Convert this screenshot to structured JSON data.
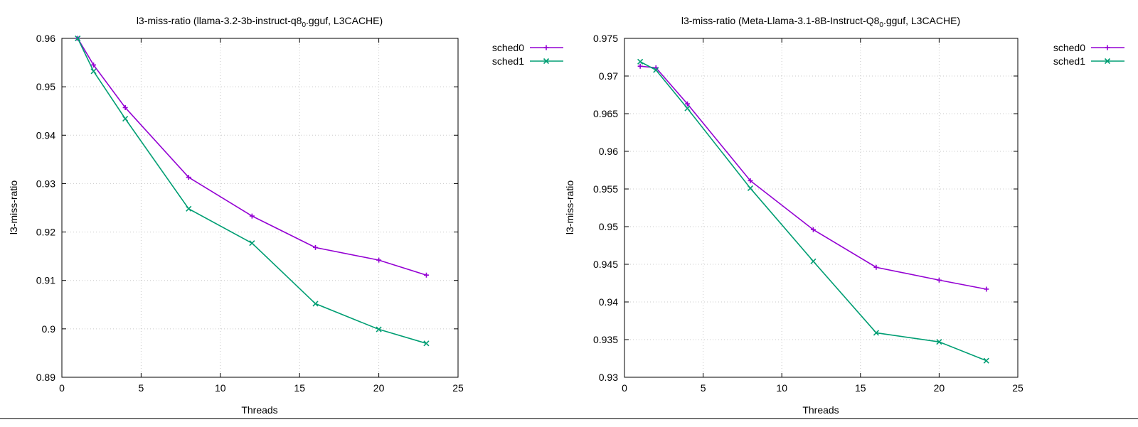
{
  "chart_data": [
    {
      "type": "line",
      "title": {
        "prefix": "l3-miss-ratio (llama-3.2-3b-instruct-q8",
        "sub": "0",
        "suffix": ".gguf, L3CACHE)"
      },
      "xlabel": "Threads",
      "ylabel": "l3-miss-ratio",
      "xlim": [
        0,
        25
      ],
      "ylim": [
        0.89,
        0.96
      ],
      "xticks": [
        0,
        5,
        10,
        15,
        20,
        25
      ],
      "xtick_labels": [
        "0",
        "5",
        "10",
        "15",
        "20",
        "25"
      ],
      "yticks": [
        0.89,
        0.9,
        0.91,
        0.92,
        0.93,
        0.94,
        0.95,
        0.96
      ],
      "ytick_labels": [
        "0.89",
        "0.9",
        "0.91",
        "0.92",
        "0.93",
        "0.94",
        "0.95",
        "0.96"
      ],
      "grid": true,
      "legend": "top-right outside",
      "x": [
        1,
        2,
        4,
        8,
        12,
        16,
        20,
        23
      ],
      "series": [
        {
          "name": "sched0",
          "color": "#9400d3",
          "marker": "plus",
          "values": [
            0.96,
            0.9545,
            0.9457,
            0.9313,
            0.9233,
            0.9168,
            0.9142,
            0.9111
          ]
        },
        {
          "name": "sched1",
          "color": "#009e73",
          "marker": "cross",
          "values": [
            0.96,
            0.9532,
            0.9434,
            0.9248,
            0.9177,
            0.9052,
            0.8999,
            0.897
          ]
        }
      ]
    },
    {
      "type": "line",
      "title": {
        "prefix": "l3-miss-ratio (Meta-Llama-3.1-8B-Instruct-Q8",
        "sub": "0",
        "suffix": ".gguf, L3CACHE)"
      },
      "xlabel": "Threads",
      "ylabel": "l3-miss-ratio",
      "xlim": [
        0,
        25
      ],
      "ylim": [
        0.93,
        0.975
      ],
      "xticks": [
        0,
        5,
        10,
        15,
        20,
        25
      ],
      "xtick_labels": [
        "0",
        "5",
        "10",
        "15",
        "20",
        "25"
      ],
      "yticks": [
        0.93,
        0.935,
        0.94,
        0.945,
        0.95,
        0.955,
        0.96,
        0.965,
        0.97,
        0.975
      ],
      "ytick_labels": [
        "0.93",
        "0.935",
        "0.94",
        "0.945",
        "0.95",
        "0.955",
        "0.96",
        "0.965",
        "0.97",
        "0.975"
      ],
      "grid": true,
      "legend": "top-right outside",
      "x": [
        1,
        2,
        4,
        8,
        12,
        16,
        20,
        23
      ],
      "series": [
        {
          "name": "sched0",
          "color": "#9400d3",
          "marker": "plus",
          "values": [
            0.9713,
            0.9711,
            0.9663,
            0.9561,
            0.9496,
            0.9446,
            0.9429,
            0.9417
          ]
        },
        {
          "name": "sched1",
          "color": "#009e73",
          "marker": "cross",
          "values": [
            0.9719,
            0.9708,
            0.9657,
            0.9551,
            0.9454,
            0.9359,
            0.9347,
            0.9322
          ]
        }
      ]
    }
  ]
}
